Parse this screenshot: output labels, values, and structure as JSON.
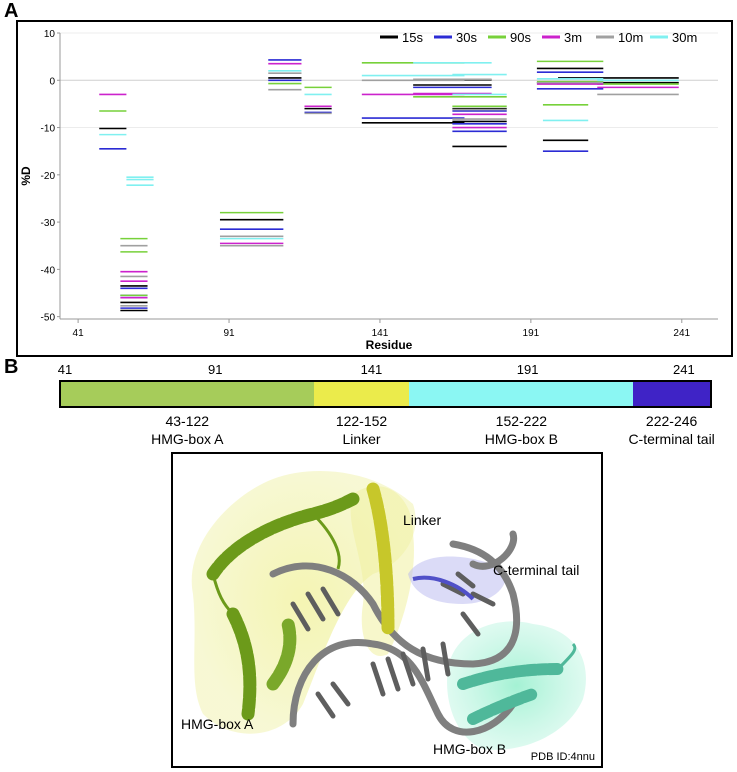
{
  "panel_a_letter": "A",
  "panel_b_letter": "B",
  "chart_data": {
    "type": "bar",
    "subtype": "horizontal-segments",
    "xlabel": "Residue",
    "ylabel": "%D",
    "xlim": [
      35,
      253
    ],
    "ylim": [
      -50.5,
      10
    ],
    "xticks": [
      41,
      91,
      141,
      191,
      241
    ],
    "yticks": [
      10,
      0,
      -10,
      -20,
      -30,
      -40,
      -50
    ],
    "grid": "horizontal at 10 and -10 only, zero line",
    "legend_placement": "top-right",
    "series": [
      {
        "name": "15s",
        "color": "#000000",
        "segments": [
          [
            48,
            57,
            -10.2
          ],
          [
            55,
            64,
            -43.5
          ],
          [
            55,
            64,
            -47
          ],
          [
            55,
            64,
            -48.7
          ],
          [
            88,
            109,
            -29.5
          ],
          [
            104,
            115,
            0.5
          ],
          [
            116,
            125,
            -6
          ],
          [
            135,
            169,
            -9
          ],
          [
            152,
            178,
            -1
          ],
          [
            165,
            178,
            0.1
          ],
          [
            165,
            183,
            -6
          ],
          [
            165,
            183,
            -8.7
          ],
          [
            165,
            183,
            -14
          ],
          [
            193,
            215,
            2.5
          ],
          [
            193,
            215,
            -0.5
          ],
          [
            200,
            240,
            0.5
          ],
          [
            213,
            240,
            -0.5
          ],
          [
            195,
            210,
            -12.7
          ]
        ]
      },
      {
        "name": "30s",
        "color": "#2b2bd4",
        "segments": [
          [
            48,
            57,
            -14.5
          ],
          [
            55,
            64,
            -44
          ],
          [
            55,
            64,
            -45.5
          ],
          [
            55,
            64,
            -48.2
          ],
          [
            88,
            109,
            -31.5
          ],
          [
            104,
            115,
            0
          ],
          [
            104,
            115,
            4.3
          ],
          [
            116,
            125,
            -6.8
          ],
          [
            135,
            169,
            -8
          ],
          [
            152,
            178,
            -1.5
          ],
          [
            165,
            183,
            -6.5
          ],
          [
            165,
            183,
            -9.2
          ],
          [
            165,
            183,
            -10.8
          ],
          [
            193,
            215,
            -1.8
          ],
          [
            193,
            215,
            1.7
          ],
          [
            195,
            210,
            -15
          ]
        ]
      },
      {
        "name": "90s",
        "color": "#77d13a",
        "segments": [
          [
            48,
            57,
            -6.5
          ],
          [
            55,
            64,
            -33.5
          ],
          [
            55,
            64,
            -36.3
          ],
          [
            55,
            64,
            -45.5
          ],
          [
            88,
            109,
            -28
          ],
          [
            104,
            115,
            -0.7
          ],
          [
            116,
            125,
            -1.5
          ],
          [
            135,
            169,
            3.7
          ],
          [
            152,
            183,
            -3.5
          ],
          [
            165,
            183,
            -5.5
          ],
          [
            193,
            215,
            4
          ],
          [
            193,
            215,
            -0.3
          ],
          [
            195,
            210,
            -5.2
          ],
          [
            213,
            240,
            -0.8
          ]
        ]
      },
      {
        "name": "3m",
        "color": "#cc22cc",
        "segments": [
          [
            48,
            57,
            -3
          ],
          [
            55,
            64,
            -40.5
          ],
          [
            55,
            64,
            -42.5
          ],
          [
            55,
            64,
            -46
          ],
          [
            88,
            109,
            -34.5
          ],
          [
            104,
            115,
            3.5
          ],
          [
            116,
            125,
            -5.5
          ],
          [
            135,
            169,
            -3
          ],
          [
            152,
            178,
            -2.8
          ],
          [
            165,
            183,
            -7.2
          ],
          [
            165,
            183,
            -10
          ],
          [
            193,
            215,
            -0.8
          ],
          [
            213,
            240,
            -1.5
          ]
        ]
      },
      {
        "name": "10m",
        "color": "#a0a0a0",
        "segments": [
          [
            55,
            64,
            -35
          ],
          [
            55,
            64,
            -41.5
          ],
          [
            55,
            64,
            -47.7
          ],
          [
            88,
            109,
            -33
          ],
          [
            88,
            109,
            -35
          ],
          [
            104,
            115,
            -2
          ],
          [
            104,
            115,
            1.5
          ],
          [
            116,
            125,
            -7
          ],
          [
            135,
            169,
            0
          ],
          [
            152,
            178,
            0.2
          ],
          [
            165,
            183,
            -6.2
          ],
          [
            165,
            183,
            -8.2
          ],
          [
            193,
            215,
            -0.5
          ],
          [
            213,
            240,
            -3
          ]
        ]
      },
      {
        "name": "30m",
        "color": "#80f0f0",
        "segments": [
          [
            48,
            57,
            -11.5
          ],
          [
            57,
            66,
            -20.5
          ],
          [
            57,
            66,
            -21
          ],
          [
            57,
            66,
            -22.2
          ],
          [
            88,
            109,
            -33.5
          ],
          [
            104,
            115,
            2
          ],
          [
            116,
            125,
            -3
          ],
          [
            135,
            169,
            1
          ],
          [
            152,
            178,
            3.7
          ],
          [
            165,
            183,
            1.2
          ],
          [
            165,
            183,
            -3
          ],
          [
            193,
            215,
            0.3
          ],
          [
            195,
            210,
            -8.5
          ],
          [
            213,
            240,
            0
          ]
        ]
      }
    ]
  },
  "domain_bar": {
    "ticks": [
      "41",
      "91",
      "141",
      "191",
      "241"
    ],
    "segments": [
      {
        "range": "43-122",
        "name": "HMG-box A",
        "color": "#a6cc5a",
        "start": 43,
        "end": 122
      },
      {
        "range": "122-152",
        "name": "Linker",
        "color": "#ebeb4b",
        "start": 122,
        "end": 152
      },
      {
        "range": "152-222",
        "name": "HMG-box B",
        "color": "#8bf7f3",
        "start": 152,
        "end": 222
      },
      {
        "range": "222-246",
        "name": "C-terminal tail",
        "color": "#3f23c6",
        "start": 222,
        "end": 246
      }
    ]
  },
  "structure": {
    "labels": {
      "linker": "Linker",
      "c_terminal_tail": "C-terminal tail",
      "hmg_box_a": "HMG-box A",
      "hmg_box_b": "HMG-box B"
    },
    "pdb_id": "PDB ID:4nnu"
  }
}
